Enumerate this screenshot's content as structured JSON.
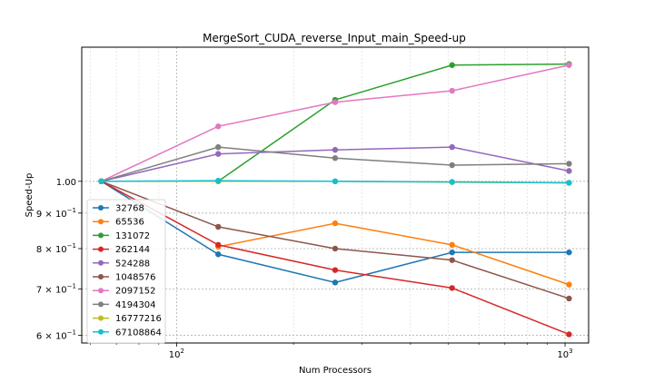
{
  "chart_data": {
    "type": "line",
    "title": "MergeSort_CUDA_reverse_Input_main_Speed-up",
    "xlabel": "Num Processors",
    "ylabel": "Speed-Up",
    "xscale": "log",
    "yscale": "log",
    "xlim": [
      57,
      1150
    ],
    "ylim": [
      0.585,
      1.56
    ],
    "x": [
      64,
      128,
      256,
      512,
      1024
    ],
    "x_ticks": [
      {
        "value": 100,
        "base": "10",
        "exp": "2"
      },
      {
        "value": 1000,
        "base": "10",
        "exp": "3"
      }
    ],
    "y_ticks": [
      {
        "value": 1.0,
        "label": "1.00",
        "mantissa": "",
        "exp": ""
      },
      {
        "value": 0.9,
        "label": "",
        "mantissa": "9 × 10",
        "exp": "−1"
      },
      {
        "value": 0.8,
        "label": "",
        "mantissa": "8 × 10",
        "exp": "−1"
      },
      {
        "value": 0.7,
        "label": "",
        "mantissa": "7 × 10",
        "exp": "−1"
      },
      {
        "value": 0.6,
        "label": "",
        "mantissa": "6 × 10",
        "exp": "−1"
      }
    ],
    "grid": true,
    "legend_position": "lower-left",
    "series": [
      {
        "name": "32768",
        "color": "#1f77b4",
        "values": [
          1.0,
          0.785,
          0.715,
          0.79,
          0.79
        ]
      },
      {
        "name": "65536",
        "color": "#ff7f0e",
        "values": [
          null,
          0.805,
          0.87,
          0.81,
          0.71
        ]
      },
      {
        "name": "131072",
        "color": "#2ca02c",
        "values": [
          null,
          1.0,
          1.31,
          1.47,
          1.475
        ]
      },
      {
        "name": "262144",
        "color": "#d62728",
        "values": [
          1.0,
          0.81,
          0.745,
          0.702,
          0.602
        ]
      },
      {
        "name": "524288",
        "color": "#9467bd",
        "values": [
          1.0,
          1.095,
          1.11,
          1.12,
          1.035
        ]
      },
      {
        "name": "1048576",
        "color": "#8c564b",
        "values": [
          1.0,
          0.86,
          0.8,
          0.77,
          0.678
        ]
      },
      {
        "name": "2097152",
        "color": "#e377c2",
        "values": [
          1.0,
          1.2,
          1.3,
          1.35,
          1.47
        ]
      },
      {
        "name": "4194304",
        "color": "#7f7f7f",
        "values": [
          1.0,
          1.12,
          1.08,
          1.055,
          1.06
        ]
      },
      {
        "name": "16777216",
        "color": "#bcbd22",
        "values": [
          1.0,
          1.0,
          1.0,
          0.997,
          0.995
        ]
      },
      {
        "name": "67108864",
        "color": "#17becf",
        "values": [
          1.0,
          1.002,
          1.0,
          0.998,
          0.995
        ]
      }
    ]
  }
}
